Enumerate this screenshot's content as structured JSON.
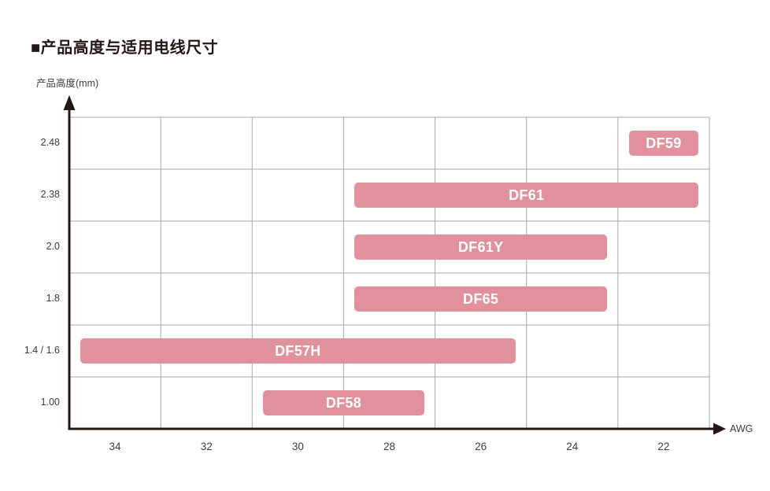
{
  "chart_data": {
    "type": "bar",
    "subtype": "horizontal-range-gantt",
    "title": "■产品高度与适用电线尺寸",
    "ylabel": "产品高度(mm)",
    "xlabel": "AWG",
    "x_ticks": [
      "34",
      "32",
      "30",
      "28",
      "26",
      "24",
      "22"
    ],
    "x_axis_range_awg": [
      35,
      21
    ],
    "y_tick_labels": [
      "2.48",
      "2.38",
      "2.0",
      "1.8",
      "1.4 / 1.6",
      "1.00"
    ],
    "grid": true,
    "legend": "none",
    "series": [
      {
        "name": "DF59",
        "product_height_mm": "2.48",
        "awg_range": [
          22,
          22
        ]
      },
      {
        "name": "DF61",
        "product_height_mm": "2.38",
        "awg_range": [
          28,
          22
        ]
      },
      {
        "name": "DF61Y",
        "product_height_mm": "2.0",
        "awg_range": [
          28,
          24
        ]
      },
      {
        "name": "DF65",
        "product_height_mm": "1.8",
        "awg_range": [
          28,
          24
        ]
      },
      {
        "name": "DF57H",
        "product_height_mm": "1.4 / 1.6",
        "awg_range": [
          34,
          26
        ]
      },
      {
        "name": "DF58",
        "product_height_mm": "1.00",
        "awg_range": [
          30,
          28
        ]
      }
    ],
    "colors": {
      "bar": "#e0919c",
      "bar_text": "#ffffff",
      "axis": "#231815",
      "grid": "#a8a8a8",
      "tick_text": "#3c3c3c",
      "background": "#ffffff"
    }
  }
}
